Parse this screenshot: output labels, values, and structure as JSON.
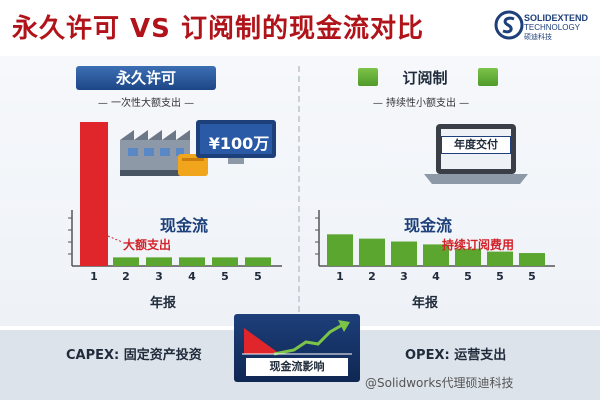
{
  "title": "永久许可 VS 订阅制的现金流对比",
  "logo": {
    "line1": "SOLIDEXTEND",
    "line2": "TECHNOLOGY",
    "line3": "硕迪科技",
    "color": "#1d3f7a"
  },
  "left": {
    "header": "永久许可",
    "subheader": "一次性大额支出",
    "price_tag": "¥100万",
    "cash_flow_label": "现金流",
    "note": "大额支出",
    "axis_label": "年报"
  },
  "right": {
    "header": "订阅制",
    "subheader": "持续性小额支出",
    "laptop_label": "年度交付",
    "cash_flow_label": "现金流",
    "note": "持续订阅费用",
    "axis_label": "年报"
  },
  "bottom": {
    "capex": "CAPEX: 固定资产投资",
    "impact": "现金流影响",
    "opex": "OPEX: 运营支出"
  },
  "watermark": "@Solidworks代理硕迪科技",
  "colors": {
    "title": "#b01319",
    "red_bar": "#e0262b",
    "green_bar": "#5aa62f",
    "navy": "#1d3f7a"
  },
  "chart_data": [
    {
      "type": "bar",
      "categories": [
        "1",
        "2",
        "3",
        "4",
        "5",
        "5"
      ],
      "values": [
        100,
        6,
        6,
        6,
        6,
        6
      ],
      "ylim": [
        0,
        100
      ],
      "xlabel": "年报",
      "annotations": [
        "大额支出"
      ]
    },
    {
      "type": "bar",
      "categories": [
        "1",
        "2",
        "3",
        "4",
        "5",
        "5",
        "5"
      ],
      "values": [
        22,
        19,
        17,
        15,
        12,
        10,
        9
      ],
      "ylim": [
        0,
        100
      ],
      "xlabel": "年报",
      "annotations": [
        "持续订阅费用"
      ]
    }
  ]
}
